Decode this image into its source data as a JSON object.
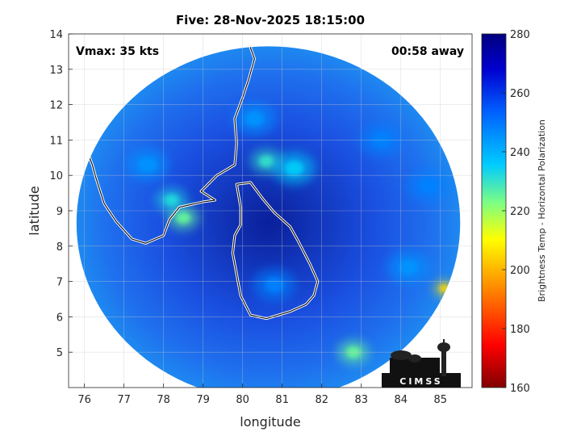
{
  "chart_data": {
    "type": "heatmap",
    "title": "Five: 28-Nov-2025 18:15:00",
    "xlabel": "longitude",
    "ylabel": "latitude",
    "xlim": [
      75.6,
      85.8
    ],
    "ylim": [
      4.0,
      14.0
    ],
    "x_ticks": [
      76,
      77,
      78,
      79,
      80,
      81,
      82,
      83,
      84,
      85
    ],
    "y_ticks": [
      5,
      6,
      7,
      8,
      9,
      10,
      11,
      12,
      13,
      14
    ],
    "grid": true,
    "annotations": {
      "vmax": "Vmax: 35 kts",
      "time_away": "00:58 away"
    },
    "colorbar": {
      "label": "Brightness Temp - Horizontal Polarization",
      "range": [
        160,
        280
      ],
      "ticks": [
        160,
        180,
        200,
        220,
        240,
        260,
        280
      ],
      "colormap": "jet"
    },
    "swath": {
      "center": [
        80.65,
        8.65
      ],
      "radius_lon": 4.85,
      "radius_lat": 5.0
    },
    "features": [
      {
        "lon": 78.5,
        "lat": 8.8,
        "tb": 225
      },
      {
        "lon": 78.2,
        "lat": 9.3,
        "tb": 232
      },
      {
        "lon": 80.6,
        "lat": 10.4,
        "tb": 230
      },
      {
        "lon": 81.3,
        "lat": 10.2,
        "tb": 235
      },
      {
        "lon": 85.1,
        "lat": 6.8,
        "tb": 205
      },
      {
        "lon": 82.8,
        "lat": 5.0,
        "tb": 225
      },
      {
        "lon": 80.3,
        "lat": 11.6,
        "tb": 245
      },
      {
        "lon": 80.8,
        "lat": 6.9,
        "tb": 248
      },
      {
        "lon": 77.6,
        "lat": 10.3,
        "tb": 245
      },
      {
        "lon": 83.5,
        "lat": 11.0,
        "tb": 248
      },
      {
        "lon": 84.7,
        "lat": 9.7,
        "tb": 248
      },
      {
        "lon": 84.2,
        "lat": 7.4,
        "tb": 245
      }
    ],
    "coastlines": {
      "india": [
        [
          75.6,
          11.4
        ],
        [
          76.0,
          10.9
        ],
        [
          76.2,
          10.3
        ],
        [
          76.3,
          9.9
        ],
        [
          76.5,
          9.2
        ],
        [
          76.8,
          8.7
        ],
        [
          77.2,
          8.2
        ],
        [
          77.55,
          8.08
        ],
        [
          78.0,
          8.3
        ],
        [
          78.15,
          8.75
        ],
        [
          78.4,
          9.1
        ],
        [
          79.0,
          9.25
        ],
        [
          79.3,
          9.3
        ],
        [
          78.95,
          9.55
        ],
        [
          79.35,
          10.0
        ],
        [
          79.8,
          10.3
        ],
        [
          79.85,
          10.9
        ],
        [
          79.8,
          11.6
        ],
        [
          80.0,
          12.2
        ],
        [
          80.15,
          12.7
        ],
        [
          80.3,
          13.3
        ],
        [
          80.2,
          13.6
        ],
        [
          80.3,
          14.0
        ]
      ],
      "sri_lanka": [
        [
          79.85,
          9.75
        ],
        [
          80.2,
          9.8
        ],
        [
          80.5,
          9.35
        ],
        [
          80.8,
          8.95
        ],
        [
          81.2,
          8.55
        ],
        [
          81.4,
          8.15
        ],
        [
          81.7,
          7.5
        ],
        [
          81.9,
          7.0
        ],
        [
          81.8,
          6.6
        ],
        [
          81.6,
          6.35
        ],
        [
          81.2,
          6.15
        ],
        [
          80.6,
          5.95
        ],
        [
          80.2,
          6.05
        ],
        [
          79.95,
          6.6
        ],
        [
          79.85,
          7.2
        ],
        [
          79.75,
          7.8
        ],
        [
          79.8,
          8.3
        ],
        [
          79.95,
          8.6
        ],
        [
          79.95,
          9.1
        ],
        [
          79.85,
          9.75
        ]
      ]
    },
    "logo": "CIMSS"
  }
}
